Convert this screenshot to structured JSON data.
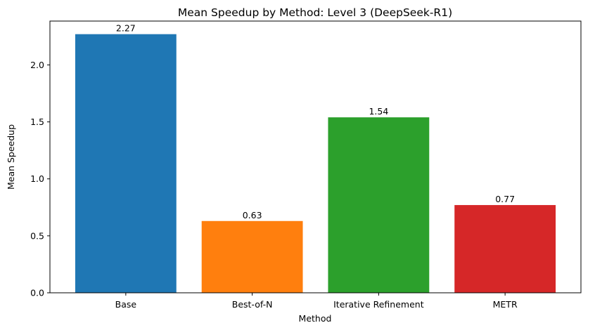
{
  "chart_data": {
    "type": "bar",
    "title": "Mean Speedup by Method: Level 3 (DeepSeek-R1)",
    "xlabel": "Method",
    "ylabel": "Mean Speedup",
    "categories": [
      "Base",
      "Best-of-N",
      "Iterative Refinement",
      "METR"
    ],
    "values": [
      2.27,
      0.63,
      1.54,
      0.77
    ],
    "value_labels": [
      "2.27",
      "0.63",
      "1.54",
      "0.77"
    ],
    "colors": [
      "#1f77b4",
      "#ff7f0e",
      "#2ca02c",
      "#d62728"
    ],
    "ylim": [
      0,
      2.385
    ],
    "yticks": [
      0.0,
      0.5,
      1.0,
      1.5,
      2.0
    ],
    "ytick_labels": [
      "0.0",
      "0.5",
      "1.0",
      "1.5",
      "2.0"
    ],
    "grid": false,
    "legend": false
  }
}
